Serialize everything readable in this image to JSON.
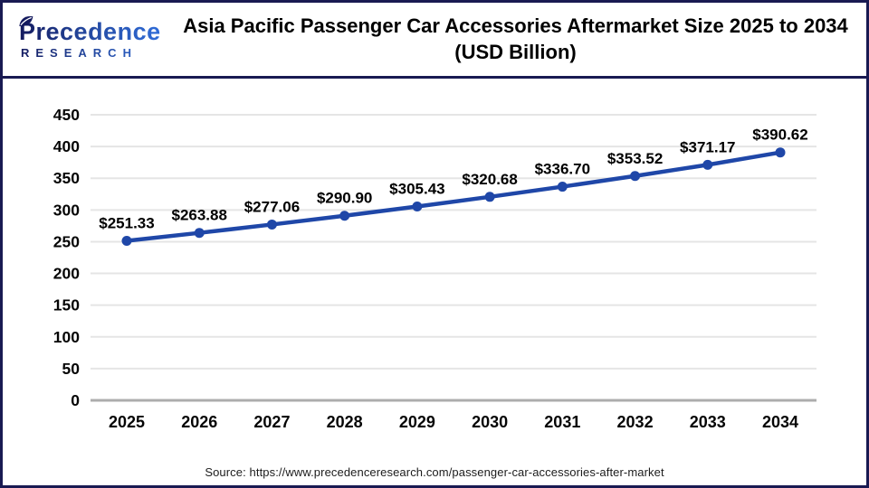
{
  "logo": {
    "line1": "Precedence",
    "line2": "RESEARCH",
    "leaf_icon": "leaf-icon"
  },
  "title": {
    "line1": "Asia Pacific Passenger Car Accessories Aftermarket Size 2025 to 2034",
    "line2": "(USD Billion)"
  },
  "source": "Source: https://www.precedenceresearch.com/passenger-car-accessories-after-market",
  "colors": {
    "border_navy": "#191A52",
    "logo_gradient_start": "#141A5E",
    "logo_gradient_end": "#2F6CD8",
    "line": "#1F47A8",
    "grid": "#E5E5E5",
    "axis": "#ADADAD",
    "label_black": "#000000"
  },
  "chart_data": {
    "type": "line",
    "title": "Asia Pacific Passenger Car Accessories Aftermarket Size 2025 to 2034 (USD Billion)",
    "categories": [
      "2025",
      "2026",
      "2027",
      "2028",
      "2029",
      "2030",
      "2031",
      "2032",
      "2033",
      "2034"
    ],
    "values": [
      251.33,
      263.88,
      277.06,
      290.9,
      305.43,
      320.68,
      336.7,
      353.52,
      371.17,
      390.62
    ],
    "value_labels": [
      "$251.33",
      "$263.88",
      "$277.06",
      "$290.90",
      "$305.43",
      "$320.68",
      "$336.70",
      "$353.52",
      "$371.17",
      "$390.62"
    ],
    "xlabel": "",
    "ylabel": "",
    "ylim": [
      0,
      450
    ],
    "yticks": [
      0,
      50,
      100,
      150,
      200,
      250,
      300,
      350,
      400,
      450
    ],
    "grid": true,
    "legend": "none",
    "marker": "circle"
  }
}
